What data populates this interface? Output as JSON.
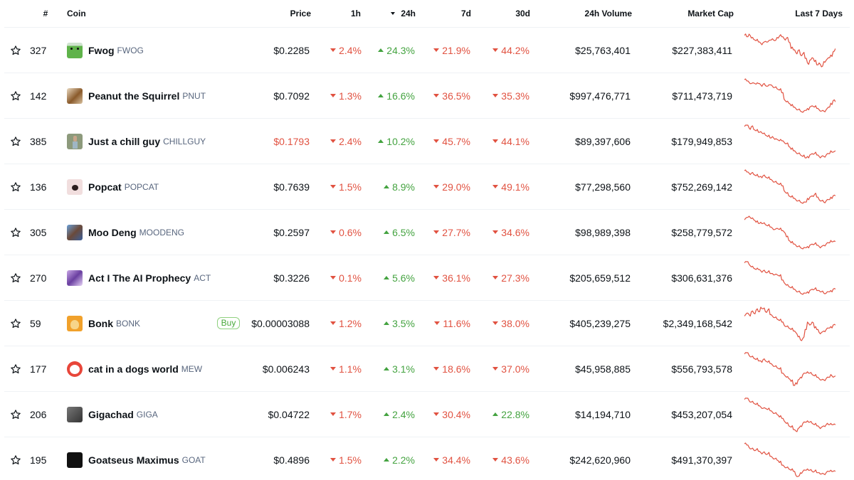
{
  "header": {
    "rank": "#",
    "coin": "Coin",
    "price": "Price",
    "h1": "1h",
    "h24": "24h",
    "d7": "7d",
    "d30": "30d",
    "volume": "24h Volume",
    "market_cap": "Market Cap",
    "last7": "Last 7 Days",
    "sorted_column": "24h",
    "sort_direction": "descending"
  },
  "colors": {
    "down": "#e15241",
    "up": "#44a340",
    "sparkline": "#e15241",
    "text": "#0d1217",
    "symbol": "#58667e"
  },
  "rows": [
    {
      "rank": "327",
      "name": "Fwog",
      "symbol": "FWOG",
      "icon": "fwog-frog-icon",
      "price": "$0.2285",
      "price_neg": false,
      "h1": "2.4%",
      "h1_dir": "down",
      "h24": "24.3%",
      "h24_dir": "up",
      "d7": "21.9%",
      "d7_dir": "down",
      "d30": "44.2%",
      "d30_dir": "down",
      "volume": "$25,763,401",
      "market_cap": "$227,383,411",
      "buy": null
    },
    {
      "rank": "142",
      "name": "Peanut the Squirrel",
      "symbol": "PNUT",
      "icon": "pnut-squirrel-icon",
      "price": "$0.7092",
      "price_neg": false,
      "h1": "1.3%",
      "h1_dir": "down",
      "h24": "16.6%",
      "h24_dir": "up",
      "d7": "36.5%",
      "d7_dir": "down",
      "d30": "35.3%",
      "d30_dir": "down",
      "volume": "$997,476,771",
      "market_cap": "$711,473,719",
      "buy": null
    },
    {
      "rank": "385",
      "name": "Just a chill guy",
      "symbol": "CHILLGUY",
      "icon": "chillguy-icon",
      "price": "$0.1793",
      "price_neg": true,
      "h1": "2.4%",
      "h1_dir": "down",
      "h24": "10.2%",
      "h24_dir": "up",
      "d7": "45.7%",
      "d7_dir": "down",
      "d30": "44.1%",
      "d30_dir": "down",
      "volume": "$89,397,606",
      "market_cap": "$179,949,853",
      "buy": null
    },
    {
      "rank": "136",
      "name": "Popcat",
      "symbol": "POPCAT",
      "icon": "popcat-icon",
      "price": "$0.7639",
      "price_neg": false,
      "h1": "1.5%",
      "h1_dir": "down",
      "h24": "8.9%",
      "h24_dir": "up",
      "d7": "29.0%",
      "d7_dir": "down",
      "d30": "49.1%",
      "d30_dir": "down",
      "volume": "$77,298,560",
      "market_cap": "$752,269,142",
      "buy": null
    },
    {
      "rank": "305",
      "name": "Moo Deng",
      "symbol": "MOODENG",
      "icon": "moodeng-hippo-icon",
      "price": "$0.2597",
      "price_neg": false,
      "h1": "0.6%",
      "h1_dir": "down",
      "h24": "6.5%",
      "h24_dir": "up",
      "d7": "27.7%",
      "d7_dir": "down",
      "d30": "34.6%",
      "d30_dir": "down",
      "volume": "$98,989,398",
      "market_cap": "$258,779,572",
      "buy": null
    },
    {
      "rank": "270",
      "name": "Act I The AI Prophecy",
      "symbol": "ACT",
      "icon": "act-eye-icon",
      "price": "$0.3226",
      "price_neg": false,
      "h1": "0.1%",
      "h1_dir": "down",
      "h24": "5.6%",
      "h24_dir": "up",
      "d7": "36.1%",
      "d7_dir": "down",
      "d30": "27.3%",
      "d30_dir": "down",
      "volume": "$205,659,512",
      "market_cap": "$306,631,376",
      "buy": null
    },
    {
      "rank": "59",
      "name": "Bonk",
      "symbol": "BONK",
      "icon": "bonk-dog-icon",
      "price": "$0.00003088",
      "price_neg": false,
      "h1": "1.2%",
      "h1_dir": "down",
      "h24": "3.5%",
      "h24_dir": "up",
      "d7": "11.6%",
      "d7_dir": "down",
      "d30": "38.0%",
      "d30_dir": "down",
      "volume": "$405,239,275",
      "market_cap": "$2,349,168,542",
      "buy": "Buy"
    },
    {
      "rank": "177",
      "name": "cat in a dogs world",
      "symbol": "MEW",
      "icon": "mew-cat-icon",
      "price": "$0.006243",
      "price_neg": false,
      "h1": "1.1%",
      "h1_dir": "down",
      "h24": "3.1%",
      "h24_dir": "up",
      "d7": "18.6%",
      "d7_dir": "down",
      "d30": "37.0%",
      "d30_dir": "down",
      "volume": "$45,958,885",
      "market_cap": "$556,793,578",
      "buy": null
    },
    {
      "rank": "206",
      "name": "Gigachad",
      "symbol": "GIGA",
      "icon": "gigachad-icon",
      "price": "$0.04722",
      "price_neg": false,
      "h1": "1.7%",
      "h1_dir": "down",
      "h24": "2.4%",
      "h24_dir": "up",
      "d7": "30.4%",
      "d7_dir": "down",
      "d30": "22.8%",
      "d30_dir": "up",
      "volume": "$14,194,710",
      "market_cap": "$453,207,054",
      "buy": null
    },
    {
      "rank": "195",
      "name": "Goatseus Maximus",
      "symbol": "GOAT",
      "icon": "goat-icon",
      "price": "$0.4896",
      "price_neg": false,
      "h1": "1.5%",
      "h1_dir": "down",
      "h24": "2.2%",
      "h24_dir": "up",
      "d7": "34.4%",
      "d7_dir": "down",
      "d30": "43.6%",
      "d30_dir": "down",
      "volume": "$242,620,960",
      "market_cap": "$491,370,397",
      "buy": null
    }
  ],
  "sparklines": [
    [
      10,
      12,
      8,
      14,
      16,
      18,
      20,
      22,
      21,
      19,
      20,
      17,
      15,
      18,
      13,
      11,
      12,
      15,
      14,
      20,
      30,
      32,
      36,
      33,
      40,
      38,
      45,
      52,
      48,
      44,
      50,
      55,
      52,
      58,
      50,
      48,
      44,
      40,
      35,
      30
    ],
    [
      8,
      10,
      12,
      14,
      13,
      15,
      14,
      16,
      15,
      17,
      18,
      16,
      18,
      20,
      22,
      24,
      28,
      38,
      42,
      44,
      48,
      50,
      52,
      54,
      56,
      58,
      55,
      52,
      50,
      48,
      50,
      52,
      54,
      56,
      56,
      54,
      50,
      44,
      40,
      42
    ],
    [
      8,
      6,
      10,
      8,
      12,
      14,
      16,
      15,
      18,
      20,
      22,
      24,
      22,
      26,
      26,
      28,
      28,
      30,
      32,
      36,
      40,
      42,
      44,
      46,
      48,
      50,
      52,
      50,
      48,
      46,
      46,
      48,
      50,
      50,
      50,
      48,
      46,
      42,
      44,
      42
    ],
    [
      6,
      8,
      10,
      10,
      12,
      14,
      16,
      15,
      14,
      16,
      18,
      20,
      22,
      24,
      26,
      28,
      30,
      38,
      42,
      46,
      48,
      50,
      52,
      54,
      56,
      58,
      56,
      50,
      48,
      46,
      44,
      48,
      52,
      54,
      56,
      54,
      52,
      48,
      46,
      46
    ],
    [
      10,
      6,
      4,
      8,
      10,
      14,
      16,
      14,
      16,
      18,
      20,
      22,
      24,
      26,
      24,
      26,
      28,
      30,
      38,
      44,
      48,
      50,
      52,
      54,
      56,
      58,
      56,
      54,
      52,
      50,
      50,
      52,
      54,
      54,
      52,
      50,
      48,
      44,
      46,
      46
    ],
    [
      8,
      6,
      10,
      14,
      16,
      18,
      18,
      20,
      20,
      22,
      22,
      24,
      24,
      26,
      26,
      28,
      34,
      38,
      42,
      44,
      46,
      48,
      50,
      52,
      54,
      56,
      54,
      52,
      50,
      48,
      48,
      50,
      50,
      52,
      54,
      54,
      52,
      50,
      48,
      48
    ],
    [
      22,
      18,
      20,
      16,
      18,
      14,
      16,
      10,
      12,
      16,
      14,
      20,
      22,
      24,
      26,
      28,
      30,
      34,
      36,
      38,
      40,
      42,
      44,
      50,
      54,
      52,
      40,
      30,
      34,
      30,
      38,
      40,
      44,
      44,
      42,
      40,
      38,
      36,
      34,
      34
    ],
    [
      10,
      8,
      12,
      14,
      16,
      18,
      20,
      20,
      18,
      20,
      22,
      24,
      26,
      28,
      30,
      32,
      38,
      40,
      44,
      46,
      50,
      56,
      52,
      48,
      44,
      40,
      38,
      36,
      38,
      40,
      42,
      44,
      46,
      48,
      48,
      46,
      44,
      40,
      44,
      42
    ],
    [
      8,
      6,
      10,
      12,
      14,
      16,
      18,
      20,
      22,
      22,
      24,
      26,
      28,
      30,
      32,
      36,
      38,
      42,
      46,
      50,
      52,
      56,
      58,
      54,
      50,
      46,
      44,
      42,
      44,
      46,
      48,
      50,
      52,
      52,
      50,
      48,
      48,
      46,
      48,
      48
    ],
    [
      6,
      8,
      12,
      14,
      16,
      16,
      18,
      20,
      20,
      22,
      22,
      26,
      28,
      30,
      32,
      36,
      40,
      42,
      44,
      46,
      48,
      50,
      56,
      58,
      52,
      50,
      48,
      46,
      48,
      50,
      50,
      52,
      52,
      54,
      54,
      52,
      50,
      48,
      50,
      50
    ]
  ]
}
